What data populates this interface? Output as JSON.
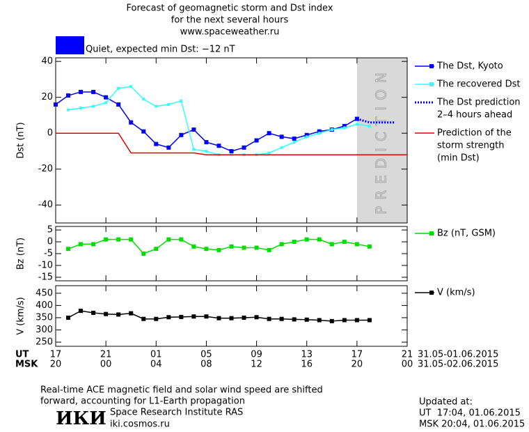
{
  "header": {
    "title_lines": [
      "Forecast of geomagnetic storm and Dst index",
      "for the next several hours",
      "www.spaceweather.ru"
    ]
  },
  "status": {
    "text": "Quiet, expected min Dst: −12 nT",
    "color": "#0000ff"
  },
  "chart_data": [
    {
      "type": "line",
      "ylabel": "Dst (nT)",
      "xlim": [
        0,
        28
      ],
      "ylim": [
        -50,
        42
      ],
      "yticks": [
        40,
        20,
        0,
        -20,
        -40
      ],
      "prediction_region": [
        24,
        28
      ],
      "prediction_text": "PREDICTION",
      "series": [
        {
          "name": [
            "The Dst, Kyoto"
          ],
          "color": "#0000ff",
          "marker": "square",
          "style": "solid",
          "x": [
            0,
            1,
            2,
            3,
            4,
            5,
            6,
            7,
            8,
            9,
            10,
            11,
            12,
            13,
            14,
            15,
            16,
            17,
            18,
            19,
            20,
            21,
            22,
            23,
            24
          ],
          "values": [
            16,
            21,
            23,
            23,
            20,
            16,
            6,
            1,
            -6,
            -8,
            -1,
            2,
            -5,
            -7,
            -10,
            -8,
            -4,
            0,
            -2,
            -3,
            -1,
            1,
            2,
            4,
            8
          ]
        },
        {
          "name": [
            "The recovered Dst"
          ],
          "color": "#33ffff",
          "marker": "small-square",
          "style": "solid",
          "x": [
            1,
            2,
            3,
            4,
            5,
            6,
            7,
            8,
            9,
            10,
            11,
            12,
            13,
            14,
            15,
            16,
            17,
            18,
            19,
            20,
            21,
            22,
            23,
            24,
            25
          ],
          "values": [
            13,
            14,
            15,
            17,
            25,
            26,
            19,
            15,
            16,
            18,
            -9,
            -10,
            -12,
            -12,
            -12,
            -12,
            -11,
            -8,
            -5,
            -2,
            0,
            2,
            3,
            5,
            4
          ]
        },
        {
          "name": [
            "The Dst prediction",
            "2–4 hours ahead"
          ],
          "color": "#0000ff",
          "marker": "none",
          "style": "dotted",
          "x": [
            24,
            25,
            26,
            27
          ],
          "values": [
            8,
            6,
            6,
            6
          ]
        },
        {
          "name": [
            "Prediction of the",
            "storm strength",
            "(min Dst)"
          ],
          "color": "#e00000",
          "marker": "none",
          "style": "solid",
          "x": [
            0,
            5,
            6,
            11,
            12,
            28
          ],
          "values": [
            0,
            0,
            -11,
            -11,
            -12,
            -12
          ]
        }
      ]
    },
    {
      "type": "line",
      "ylabel": "Bz (nT)",
      "xlim": [
        0,
        28
      ],
      "ylim": [
        -16.5,
        6.5
      ],
      "yticks": [
        5,
        0,
        -5,
        -10,
        -15
      ],
      "series": [
        {
          "name": [
            "Bz (nT, GSM)"
          ],
          "color": "#00dd00",
          "marker": "square",
          "style": "solid",
          "x": [
            1,
            2,
            3,
            4,
            5,
            6,
            7,
            8,
            9,
            10,
            11,
            12,
            13,
            14,
            15,
            16,
            17,
            18,
            19,
            20,
            21,
            22,
            23,
            24,
            25
          ],
          "values": [
            -3,
            -1,
            -1,
            1,
            1,
            1,
            -5,
            -3,
            1,
            1,
            -2,
            -3,
            -3.5,
            -2,
            -2.5,
            -2.5,
            -3.5,
            -1,
            0,
            1,
            1,
            -1,
            0,
            -1,
            -2
          ]
        }
      ]
    },
    {
      "type": "line",
      "ylabel": "V (km/s)",
      "xlim": [
        0,
        28
      ],
      "ylim": [
        233,
        481
      ],
      "yticks": [
        450,
        400,
        350,
        300,
        250
      ],
      "xticks": [
        {
          "value": 0,
          "label": "17"
        },
        {
          "value": 4,
          "label": "21"
        },
        {
          "value": 8,
          "label": "01"
        },
        {
          "value": 12,
          "label": "05"
        },
        {
          "value": 16,
          "label": "09"
        },
        {
          "value": 20,
          "label": "13"
        },
        {
          "value": 24,
          "label": "17"
        },
        {
          "value": 28,
          "label": "21"
        }
      ],
      "xticks_msk": [
        {
          "value": 0,
          "label": "20"
        },
        {
          "value": 4,
          "label": "00"
        },
        {
          "value": 8,
          "label": "04"
        },
        {
          "value": 12,
          "label": "08"
        },
        {
          "value": 16,
          "label": "12"
        },
        {
          "value": 20,
          "label": "16"
        },
        {
          "value": 24,
          "label": "20"
        },
        {
          "value": 28,
          "label": "00"
        }
      ],
      "xaxis_ut_label": "UT",
      "xaxis_msk_label": "MSK",
      "ut_dates": "31.05-01.06.2015",
      "msk_dates": "31.05-02.06.2015",
      "series": [
        {
          "name": [
            "V (km/s)"
          ],
          "color": "#000000",
          "marker": "square",
          "style": "solid",
          "x": [
            1,
            2,
            3,
            4,
            5,
            6,
            7,
            8,
            9,
            10,
            11,
            12,
            13,
            14,
            15,
            16,
            17,
            18,
            19,
            20,
            21,
            22,
            23,
            24,
            25
          ],
          "values": [
            350,
            378,
            370,
            365,
            363,
            368,
            345,
            345,
            352,
            353,
            355,
            355,
            348,
            348,
            350,
            352,
            345,
            345,
            343,
            342,
            340,
            336,
            340,
            340,
            340
          ]
        }
      ]
    }
  ],
  "footer": {
    "note_lines": [
      "Real-time ACE magnetic field and solar wind speed are shifted",
      "forward, accounting for L1-Earth propagation"
    ],
    "logo": "ИКИ",
    "institute": "Space Research Institute RAS",
    "url": "iki.cosmos.ru",
    "updated_label": "Updated at:",
    "updated_ut": "UT  17:04, 01.06.2015",
    "updated_msk": "MSK 20:04, 01.06.2015"
  }
}
